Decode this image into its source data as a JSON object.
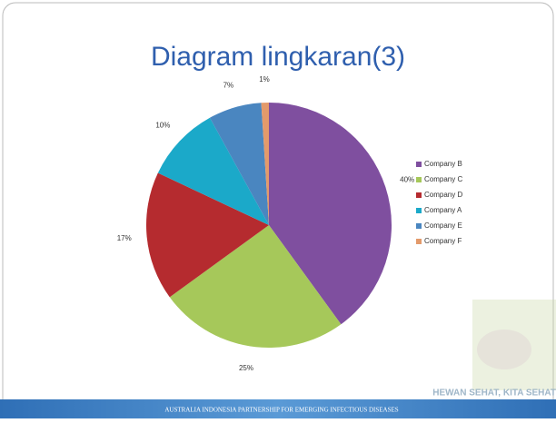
{
  "chart_data": {
    "type": "pie",
    "title": "Diagram lingkaran(3)",
    "categories": [
      "Company B",
      "Company C",
      "Company D",
      "Company A",
      "Company E",
      "Company F"
    ],
    "values": [
      40,
      25,
      17,
      10,
      7,
      1
    ],
    "value_labels": [
      "40%",
      "25%",
      "17%",
      "10%",
      "7%",
      "1%"
    ],
    "colors": [
      "#7f4f9f",
      "#a6c85a",
      "#b52b2f",
      "#1ba9c9",
      "#4a86c0",
      "#e39a6b"
    ],
    "legend": "right"
  },
  "watermark": "HEWAN SEHAT, KITA SEHAT",
  "footer": "AUSTRALIA INDONESIA PARTNERSHIP FOR EMERGING INFECTIOUS DISEASES"
}
